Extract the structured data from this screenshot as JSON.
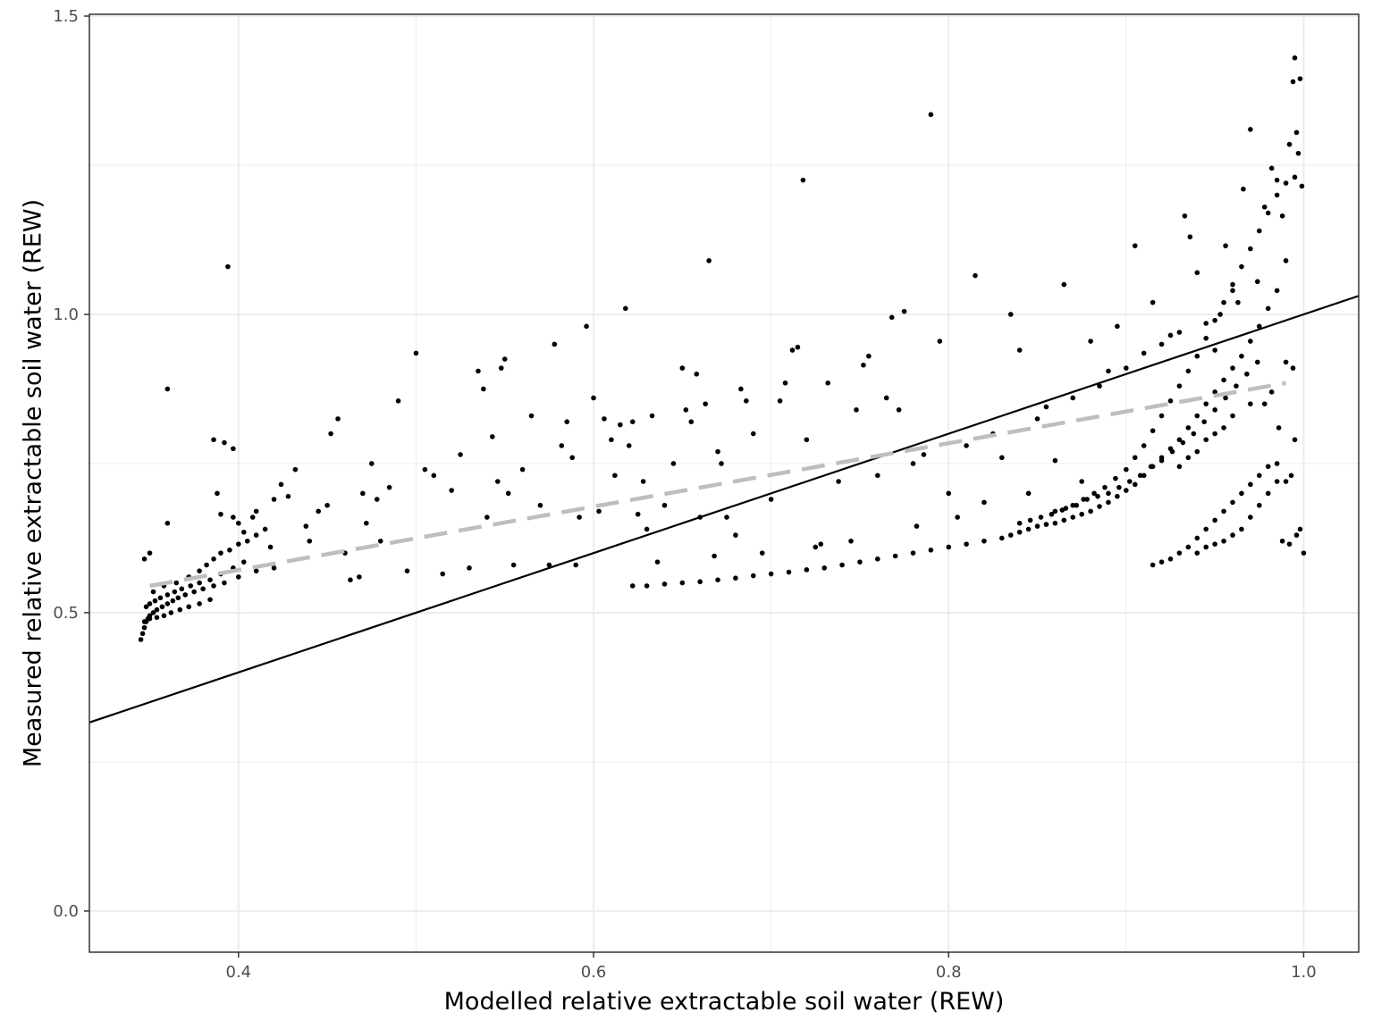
{
  "chart_data": {
    "type": "scatter",
    "title": "",
    "xlabel": "Modelled relative extractable soil water (REW)",
    "ylabel": "Measured relative extractable soil water (REW)",
    "xlim": [
      0.316,
      1.031
    ],
    "ylim": [
      -0.069,
      1.503
    ],
    "x_ticks": [
      0.4,
      0.6,
      0.8,
      1.0
    ],
    "x_tick_labels": [
      "0.4",
      "0.6",
      "0.8",
      "1.0"
    ],
    "y_ticks": [
      0.0,
      0.5,
      1.0,
      1.5
    ],
    "y_tick_labels": [
      "0.0",
      "0.5",
      "1.0",
      "1.5"
    ],
    "grid": true,
    "colors": {
      "points": "#000000",
      "identity_line": "#000000",
      "fit_line": "#bebebe",
      "grid": "#ebebeb",
      "panel_border": "#333333"
    },
    "reference_lines": [
      {
        "kind": "identity",
        "style": "solid",
        "color": "#000000",
        "x": [
          0.316,
          1.031
        ],
        "y": [
          0.316,
          1.031
        ]
      },
      {
        "kind": "linear-fit",
        "style": "dashed",
        "color": "#bebebe",
        "x": [
          0.35,
          0.99
        ],
        "y": [
          0.545,
          0.885
        ]
      }
    ],
    "points": [
      [
        0.345,
        0.455
      ],
      [
        0.346,
        0.465
      ],
      [
        0.347,
        0.475
      ],
      [
        0.348,
        0.485
      ],
      [
        0.349,
        0.49
      ],
      [
        0.35,
        0.495
      ],
      [
        0.352,
        0.5
      ],
      [
        0.354,
        0.505
      ],
      [
        0.357,
        0.51
      ],
      [
        0.36,
        0.515
      ],
      [
        0.363,
        0.52
      ],
      [
        0.366,
        0.525
      ],
      [
        0.37,
        0.53
      ],
      [
        0.375,
        0.535
      ],
      [
        0.38,
        0.54
      ],
      [
        0.386,
        0.545
      ],
      [
        0.392,
        0.55
      ],
      [
        0.4,
        0.56
      ],
      [
        0.41,
        0.57
      ],
      [
        0.42,
        0.575
      ],
      [
        0.348,
        0.51
      ],
      [
        0.35,
        0.515
      ],
      [
        0.353,
        0.52
      ],
      [
        0.356,
        0.525
      ],
      [
        0.36,
        0.53
      ],
      [
        0.364,
        0.535
      ],
      [
        0.368,
        0.54
      ],
      [
        0.373,
        0.545
      ],
      [
        0.378,
        0.55
      ],
      [
        0.384,
        0.555
      ],
      [
        0.39,
        0.565
      ],
      [
        0.397,
        0.575
      ],
      [
        0.403,
        0.585
      ],
      [
        0.347,
        0.485
      ],
      [
        0.35,
        0.49
      ],
      [
        0.354,
        0.492
      ],
      [
        0.358,
        0.495
      ],
      [
        0.362,
        0.5
      ],
      [
        0.367,
        0.505
      ],
      [
        0.372,
        0.51
      ],
      [
        0.378,
        0.515
      ],
      [
        0.384,
        0.522
      ],
      [
        0.352,
        0.535
      ],
      [
        0.358,
        0.545
      ],
      [
        0.365,
        0.55
      ],
      [
        0.372,
        0.56
      ],
      [
        0.378,
        0.57
      ],
      [
        0.382,
        0.58
      ],
      [
        0.386,
        0.59
      ],
      [
        0.39,
        0.6
      ],
      [
        0.395,
        0.605
      ],
      [
        0.4,
        0.615
      ],
      [
        0.405,
        0.62
      ],
      [
        0.41,
        0.63
      ],
      [
        0.347,
        0.59
      ],
      [
        0.35,
        0.6
      ],
      [
        0.36,
        0.875
      ],
      [
        0.36,
        0.65
      ],
      [
        0.386,
        0.79
      ],
      [
        0.392,
        0.785
      ],
      [
        0.397,
        0.775
      ],
      [
        0.394,
        1.08
      ],
      [
        0.388,
        0.7
      ],
      [
        0.39,
        0.665
      ],
      [
        0.397,
        0.66
      ],
      [
        0.4,
        0.65
      ],
      [
        0.403,
        0.635
      ],
      [
        0.408,
        0.66
      ],
      [
        0.41,
        0.67
      ],
      [
        0.415,
        0.64
      ],
      [
        0.418,
        0.61
      ],
      [
        0.42,
        0.69
      ],
      [
        0.424,
        0.715
      ],
      [
        0.428,
        0.695
      ],
      [
        0.432,
        0.74
      ],
      [
        0.438,
        0.645
      ],
      [
        0.44,
        0.62
      ],
      [
        0.445,
        0.67
      ],
      [
        0.45,
        0.68
      ],
      [
        0.452,
        0.8
      ],
      [
        0.456,
        0.825
      ],
      [
        0.46,
        0.6
      ],
      [
        0.463,
        0.555
      ],
      [
        0.468,
        0.56
      ],
      [
        0.47,
        0.7
      ],
      [
        0.472,
        0.65
      ],
      [
        0.475,
        0.75
      ],
      [
        0.478,
        0.69
      ],
      [
        0.48,
        0.62
      ],
      [
        0.485,
        0.71
      ],
      [
        0.49,
        0.855
      ],
      [
        0.495,
        0.57
      ],
      [
        0.5,
        0.935
      ],
      [
        0.505,
        0.74
      ],
      [
        0.51,
        0.73
      ],
      [
        0.515,
        0.565
      ],
      [
        0.52,
        0.705
      ],
      [
        0.525,
        0.765
      ],
      [
        0.53,
        0.575
      ],
      [
        0.535,
        0.905
      ],
      [
        0.538,
        0.875
      ],
      [
        0.54,
        0.66
      ],
      [
        0.543,
        0.795
      ],
      [
        0.546,
        0.72
      ],
      [
        0.548,
        0.91
      ],
      [
        0.55,
        0.925
      ],
      [
        0.552,
        0.7
      ],
      [
        0.555,
        0.58
      ],
      [
        0.56,
        0.74
      ],
      [
        0.565,
        0.83
      ],
      [
        0.57,
        0.68
      ],
      [
        0.575,
        0.58
      ],
      [
        0.578,
        0.95
      ],
      [
        0.582,
        0.78
      ],
      [
        0.585,
        0.82
      ],
      [
        0.588,
        0.76
      ],
      [
        0.59,
        0.58
      ],
      [
        0.592,
        0.66
      ],
      [
        0.596,
        0.98
      ],
      [
        0.6,
        0.86
      ],
      [
        0.603,
        0.67
      ],
      [
        0.606,
        0.825
      ],
      [
        0.61,
        0.79
      ],
      [
        0.612,
        0.73
      ],
      [
        0.615,
        0.815
      ],
      [
        0.618,
        1.01
      ],
      [
        0.62,
        0.78
      ],
      [
        0.622,
        0.82
      ],
      [
        0.625,
        0.665
      ],
      [
        0.628,
        0.72
      ],
      [
        0.63,
        0.64
      ],
      [
        0.633,
        0.83
      ],
      [
        0.636,
        0.585
      ],
      [
        0.64,
        0.68
      ],
      [
        0.645,
        0.75
      ],
      [
        0.65,
        0.91
      ],
      [
        0.652,
        0.84
      ],
      [
        0.655,
        0.82
      ],
      [
        0.658,
        0.9
      ],
      [
        0.66,
        0.66
      ],
      [
        0.663,
        0.85
      ],
      [
        0.665,
        1.09
      ],
      [
        0.668,
        0.595
      ],
      [
        0.67,
        0.77
      ],
      [
        0.672,
        0.75
      ],
      [
        0.675,
        0.66
      ],
      [
        0.68,
        0.63
      ],
      [
        0.683,
        0.875
      ],
      [
        0.686,
        0.855
      ],
      [
        0.69,
        0.8
      ],
      [
        0.695,
        0.6
      ],
      [
        0.7,
        0.69
      ],
      [
        0.705,
        0.855
      ],
      [
        0.708,
        0.885
      ],
      [
        0.712,
        0.94
      ],
      [
        0.715,
        0.945
      ],
      [
        0.718,
        1.225
      ],
      [
        0.72,
        0.79
      ],
      [
        0.725,
        0.61
      ],
      [
        0.728,
        0.615
      ],
      [
        0.732,
        0.885
      ],
      [
        0.738,
        0.72
      ],
      [
        0.745,
        0.62
      ],
      [
        0.748,
        0.84
      ],
      [
        0.752,
        0.915
      ],
      [
        0.755,
        0.93
      ],
      [
        0.76,
        0.73
      ],
      [
        0.765,
        0.86
      ],
      [
        0.768,
        0.995
      ],
      [
        0.772,
        0.84
      ],
      [
        0.775,
        1.005
      ],
      [
        0.78,
        0.75
      ],
      [
        0.782,
        0.645
      ],
      [
        0.786,
        0.765
      ],
      [
        0.79,
        1.335
      ],
      [
        0.795,
        0.955
      ],
      [
        0.8,
        0.7
      ],
      [
        0.805,
        0.66
      ],
      [
        0.81,
        0.78
      ],
      [
        0.815,
        1.065
      ],
      [
        0.82,
        0.685
      ],
      [
        0.825,
        0.8
      ],
      [
        0.83,
        0.76
      ],
      [
        0.835,
        1.0
      ],
      [
        0.84,
        0.94
      ],
      [
        0.845,
        0.7
      ],
      [
        0.85,
        0.825
      ],
      [
        0.855,
        0.845
      ],
      [
        0.86,
        0.755
      ],
      [
        0.865,
        1.05
      ],
      [
        0.87,
        0.86
      ],
      [
        0.875,
        0.72
      ],
      [
        0.88,
        0.955
      ],
      [
        0.885,
        0.88
      ],
      [
        0.89,
        0.905
      ],
      [
        0.895,
        0.98
      ],
      [
        0.9,
        0.91
      ],
      [
        0.905,
        1.115
      ],
      [
        0.91,
        0.935
      ],
      [
        0.915,
        1.02
      ],
      [
        0.92,
        0.95
      ],
      [
        0.925,
        0.965
      ],
      [
        0.93,
        0.97
      ],
      [
        0.933,
        1.165
      ],
      [
        0.936,
        1.13
      ],
      [
        0.94,
        1.07
      ],
      [
        0.945,
        0.985
      ],
      [
        0.95,
        0.94
      ],
      [
        0.953,
        1.0
      ],
      [
        0.956,
        1.115
      ],
      [
        0.96,
        1.04
      ],
      [
        0.963,
        1.02
      ],
      [
        0.966,
        1.21
      ],
      [
        0.97,
        1.31
      ],
      [
        0.974,
        1.055
      ],
      [
        0.978,
        1.18
      ],
      [
        0.982,
        1.245
      ],
      [
        0.985,
        1.225
      ],
      [
        0.988,
        1.165
      ],
      [
        0.99,
        1.09
      ],
      [
        0.992,
        1.285
      ],
      [
        0.994,
        1.39
      ],
      [
        0.995,
        1.43
      ],
      [
        0.996,
        1.305
      ],
      [
        0.997,
        1.27
      ],
      [
        0.998,
        1.395
      ],
      [
        0.999,
        1.215
      ],
      [
        1.0,
        0.6
      ],
      [
        0.622,
        0.545
      ],
      [
        0.63,
        0.545
      ],
      [
        0.64,
        0.548
      ],
      [
        0.65,
        0.55
      ],
      [
        0.66,
        0.552
      ],
      [
        0.67,
        0.555
      ],
      [
        0.68,
        0.558
      ],
      [
        0.69,
        0.562
      ],
      [
        0.7,
        0.565
      ],
      [
        0.71,
        0.568
      ],
      [
        0.72,
        0.572
      ],
      [
        0.73,
        0.575
      ],
      [
        0.74,
        0.58
      ],
      [
        0.75,
        0.585
      ],
      [
        0.76,
        0.59
      ],
      [
        0.77,
        0.595
      ],
      [
        0.78,
        0.6
      ],
      [
        0.79,
        0.605
      ],
      [
        0.8,
        0.61
      ],
      [
        0.81,
        0.615
      ],
      [
        0.82,
        0.62
      ],
      [
        0.83,
        0.625
      ],
      [
        0.835,
        0.63
      ],
      [
        0.84,
        0.635
      ],
      [
        0.845,
        0.64
      ],
      [
        0.85,
        0.645
      ],
      [
        0.855,
        0.648
      ],
      [
        0.86,
        0.65
      ],
      [
        0.865,
        0.655
      ],
      [
        0.87,
        0.66
      ],
      [
        0.875,
        0.665
      ],
      [
        0.88,
        0.67
      ],
      [
        0.885,
        0.678
      ],
      [
        0.89,
        0.685
      ],
      [
        0.895,
        0.695
      ],
      [
        0.9,
        0.705
      ],
      [
        0.905,
        0.715
      ],
      [
        0.91,
        0.73
      ],
      [
        0.915,
        0.745
      ],
      [
        0.92,
        0.76
      ],
      [
        0.925,
        0.775
      ],
      [
        0.93,
        0.79
      ],
      [
        0.935,
        0.81
      ],
      [
        0.94,
        0.83
      ],
      [
        0.945,
        0.85
      ],
      [
        0.95,
        0.87
      ],
      [
        0.955,
        0.89
      ],
      [
        0.96,
        0.91
      ],
      [
        0.965,
        0.93
      ],
      [
        0.97,
        0.955
      ],
      [
        0.975,
        0.98
      ],
      [
        0.98,
        1.01
      ],
      [
        0.985,
        1.04
      ],
      [
        0.84,
        0.65
      ],
      [
        0.846,
        0.655
      ],
      [
        0.852,
        0.66
      ],
      [
        0.858,
        0.665
      ],
      [
        0.864,
        0.672
      ],
      [
        0.87,
        0.68
      ],
      [
        0.876,
        0.69
      ],
      [
        0.882,
        0.7
      ],
      [
        0.888,
        0.71
      ],
      [
        0.894,
        0.725
      ],
      [
        0.9,
        0.74
      ],
      [
        0.905,
        0.76
      ],
      [
        0.91,
        0.78
      ],
      [
        0.915,
        0.805
      ],
      [
        0.92,
        0.83
      ],
      [
        0.925,
        0.855
      ],
      [
        0.93,
        0.88
      ],
      [
        0.935,
        0.905
      ],
      [
        0.94,
        0.93
      ],
      [
        0.945,
        0.96
      ],
      [
        0.95,
        0.99
      ],
      [
        0.955,
        1.02
      ],
      [
        0.96,
        1.05
      ],
      [
        0.965,
        1.08
      ],
      [
        0.97,
        1.11
      ],
      [
        0.975,
        1.14
      ],
      [
        0.98,
        1.17
      ],
      [
        0.985,
        1.2
      ],
      [
        0.99,
        1.22
      ],
      [
        0.995,
        1.23
      ],
      [
        0.86,
        0.67
      ],
      [
        0.866,
        0.675
      ],
      [
        0.872,
        0.68
      ],
      [
        0.878,
        0.69
      ],
      [
        0.884,
        0.695
      ],
      [
        0.89,
        0.7
      ],
      [
        0.896,
        0.71
      ],
      [
        0.902,
        0.72
      ],
      [
        0.908,
        0.73
      ],
      [
        0.914,
        0.745
      ],
      [
        0.92,
        0.755
      ],
      [
        0.926,
        0.77
      ],
      [
        0.932,
        0.785
      ],
      [
        0.938,
        0.8
      ],
      [
        0.944,
        0.82
      ],
      [
        0.95,
        0.84
      ],
      [
        0.956,
        0.86
      ],
      [
        0.962,
        0.88
      ],
      [
        0.968,
        0.9
      ],
      [
        0.974,
        0.92
      ],
      [
        0.915,
        0.58
      ],
      [
        0.92,
        0.585
      ],
      [
        0.925,
        0.59
      ],
      [
        0.93,
        0.6
      ],
      [
        0.935,
        0.61
      ],
      [
        0.94,
        0.625
      ],
      [
        0.945,
        0.64
      ],
      [
        0.95,
        0.655
      ],
      [
        0.955,
        0.67
      ],
      [
        0.96,
        0.685
      ],
      [
        0.965,
        0.7
      ],
      [
        0.97,
        0.715
      ],
      [
        0.975,
        0.73
      ],
      [
        0.98,
        0.745
      ],
      [
        0.985,
        0.75
      ],
      [
        0.99,
        0.72
      ],
      [
        0.94,
        0.6
      ],
      [
        0.945,
        0.61
      ],
      [
        0.95,
        0.615
      ],
      [
        0.955,
        0.62
      ],
      [
        0.96,
        0.63
      ],
      [
        0.965,
        0.64
      ],
      [
        0.97,
        0.66
      ],
      [
        0.975,
        0.68
      ],
      [
        0.98,
        0.7
      ],
      [
        0.985,
        0.72
      ],
      [
        0.988,
        0.62
      ],
      [
        0.992,
        0.615
      ],
      [
        0.996,
        0.63
      ],
      [
        0.998,
        0.64
      ],
      [
        0.995,
        0.79
      ],
      [
        0.993,
        0.73
      ],
      [
        0.99,
        0.92
      ],
      [
        0.994,
        0.91
      ],
      [
        0.986,
        0.81
      ],
      [
        0.982,
        0.87
      ],
      [
        0.978,
        0.85
      ],
      [
        0.97,
        0.85
      ],
      [
        0.96,
        0.83
      ],
      [
        0.955,
        0.81
      ],
      [
        0.95,
        0.8
      ],
      [
        0.945,
        0.79
      ],
      [
        0.94,
        0.77
      ],
      [
        0.935,
        0.76
      ],
      [
        0.93,
        0.745
      ]
    ]
  }
}
